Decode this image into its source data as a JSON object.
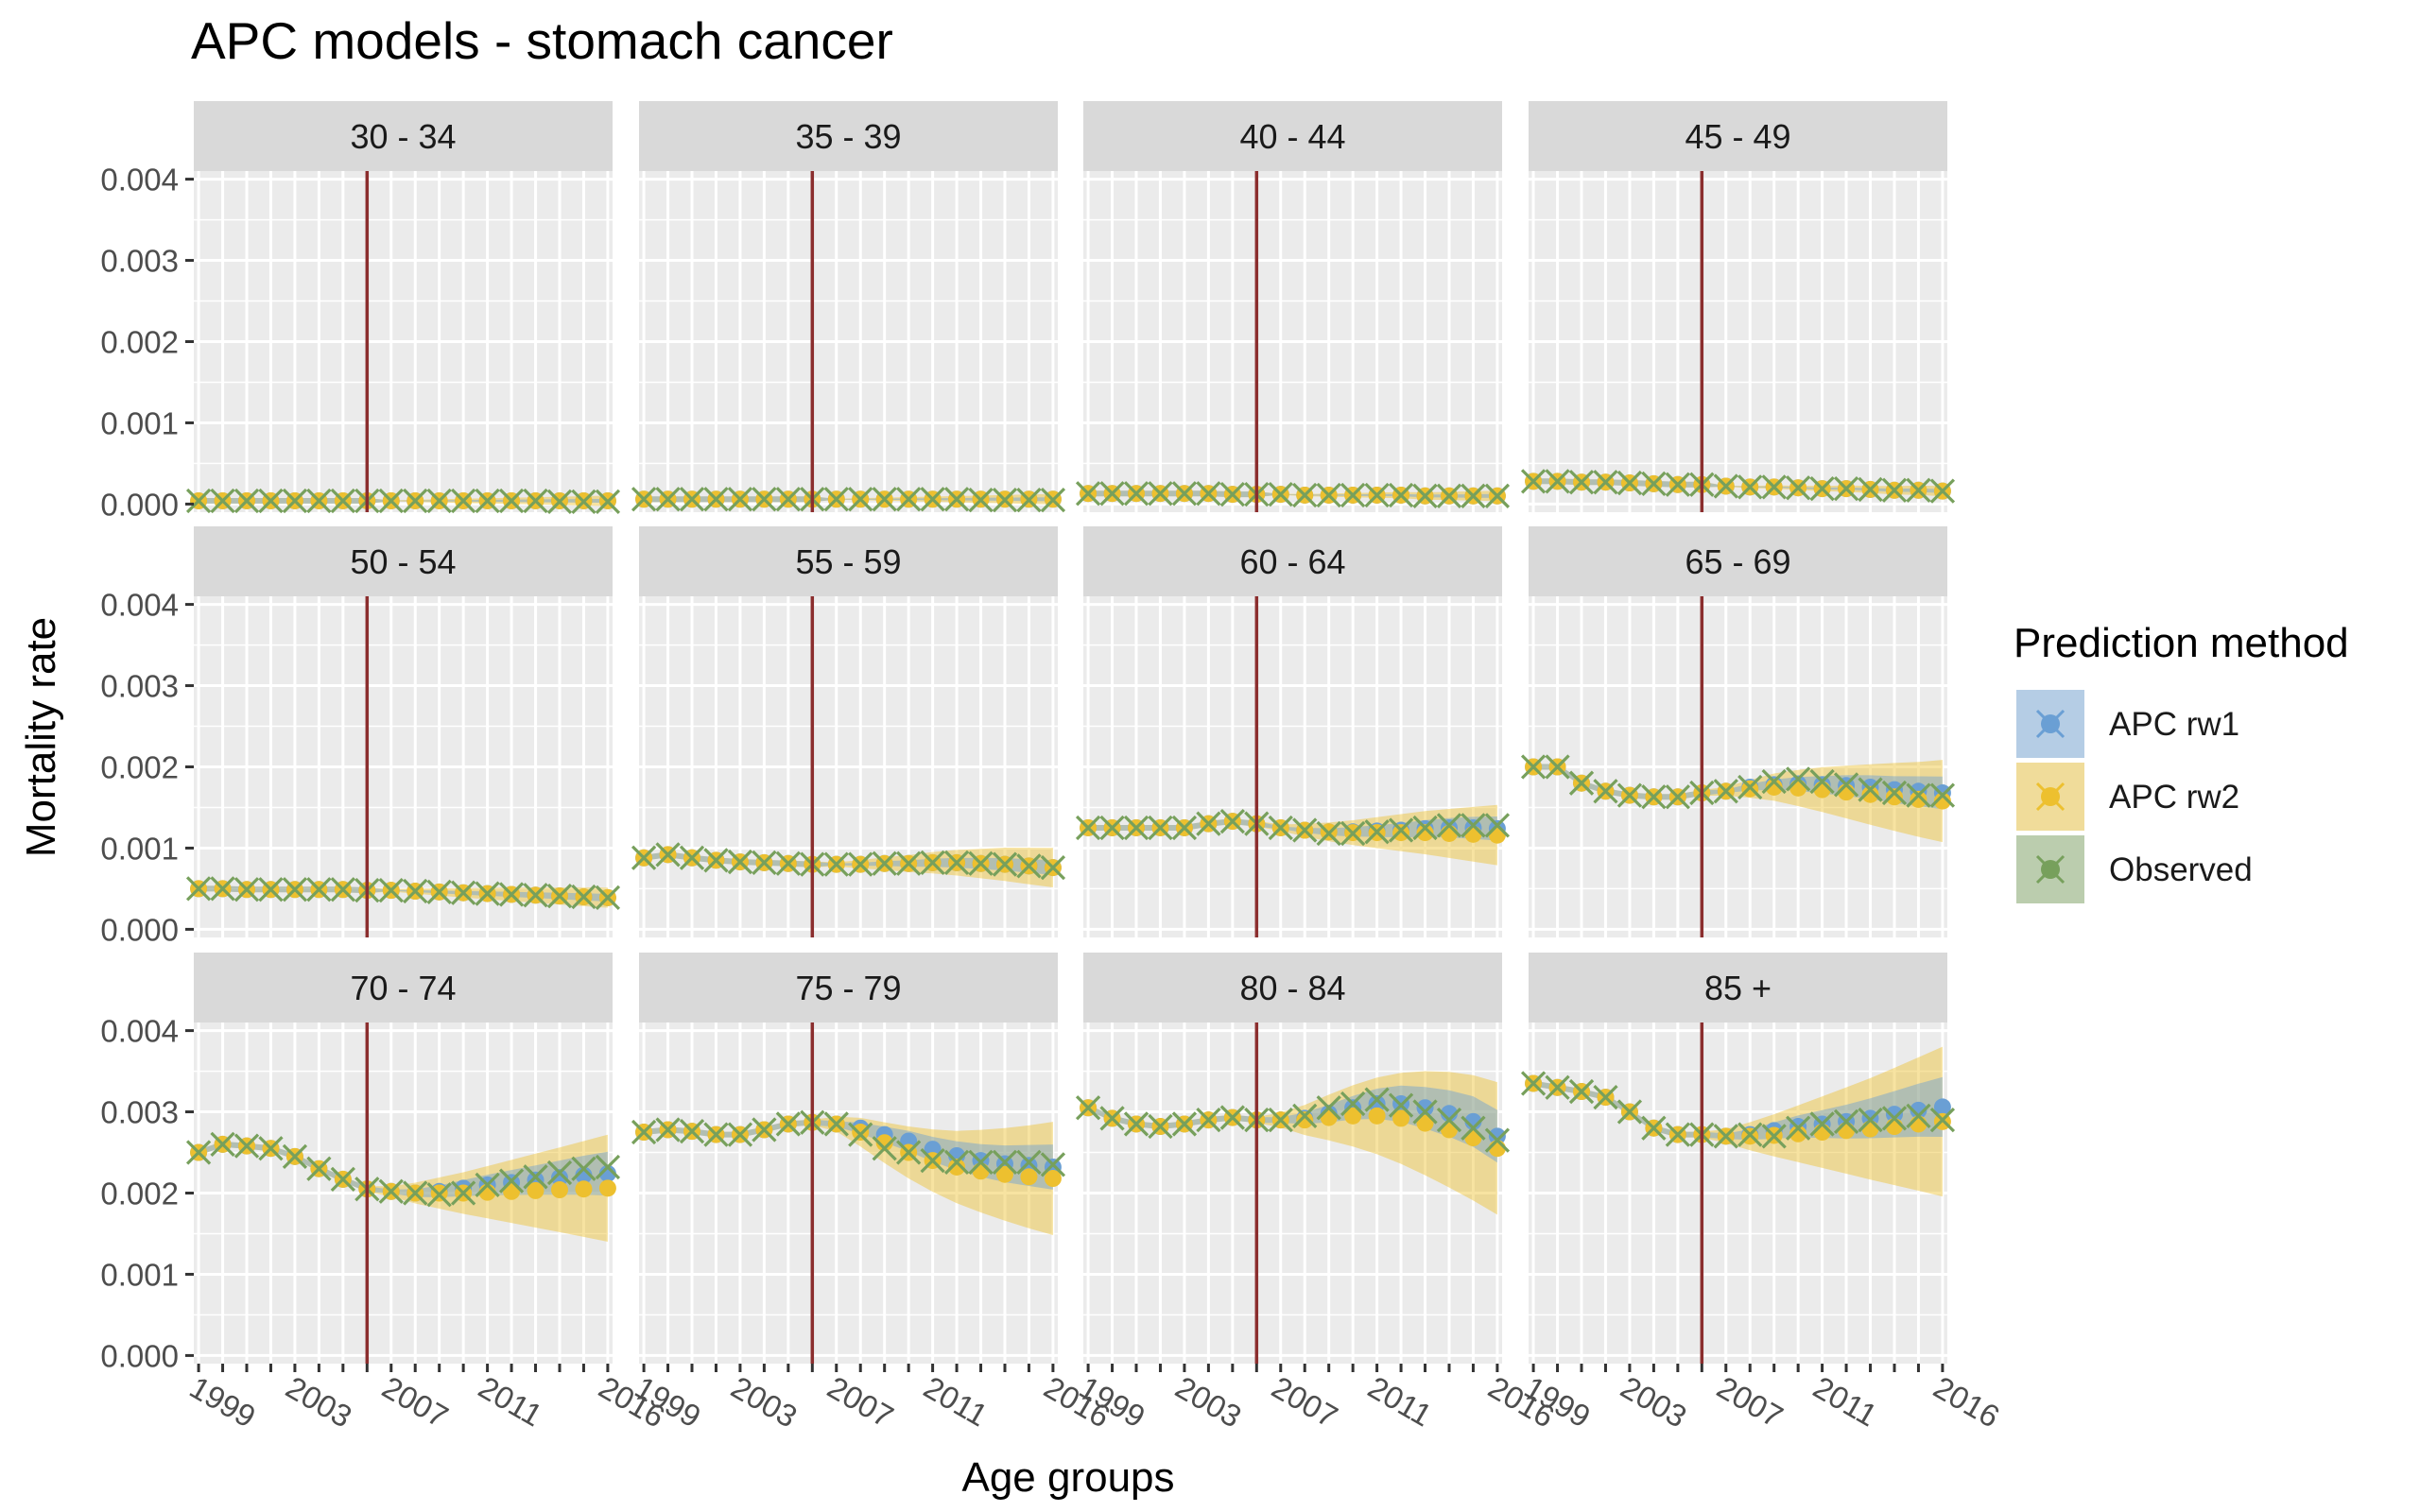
{
  "chart_data": {
    "type": "line",
    "title": "APC models - stomach cancer",
    "xlabel": "Age groups",
    "ylabel": "Mortality rate",
    "x": [
      1999,
      2000,
      2001,
      2002,
      2003,
      2004,
      2005,
      2006,
      2007,
      2008,
      2009,
      2010,
      2011,
      2012,
      2013,
      2014,
      2015,
      2016
    ],
    "x_ticks": [
      1999,
      2003,
      2007,
      2011,
      2016
    ],
    "xlim": [
      1998.8,
      2016.2
    ],
    "ylim": [
      -0.0001,
      0.0041
    ],
    "y_ticks": [
      "0.000",
      "0.001",
      "0.002",
      "0.003",
      "0.004"
    ],
    "reference_line_x": 2006,
    "grid": true,
    "legend": {
      "title": "Prediction method",
      "placement": "right",
      "entries": [
        {
          "name": "APC rw1",
          "color": "#5B9BD5"
        },
        {
          "name": "APC rw2",
          "color": "#F0C419"
        },
        {
          "name": "Observed",
          "color": "#6E9B50"
        }
      ]
    },
    "colors": {
      "rw1": "#6A9FD4",
      "rw2": "#EDC02F",
      "observed": "#77A05C",
      "vline": "#8B2E2E",
      "panel_bg": "#EBEBEB",
      "strip_bg": "#D9D9D9"
    },
    "panels": [
      {
        "label": "30 - 34",
        "observed": [
          4e-05,
          4e-05,
          4e-05,
          4e-05,
          4e-05,
          4e-05,
          4e-05,
          4e-05,
          4e-05,
          4e-05,
          4e-05,
          4e-05,
          4e-05,
          4e-05,
          4e-05,
          3e-05,
          3e-05,
          3e-05
        ],
        "rw1": [
          4e-05,
          4e-05,
          4e-05,
          4e-05,
          4e-05,
          4e-05,
          4e-05,
          4e-05,
          4e-05,
          4e-05,
          4e-05,
          4e-05,
          4e-05,
          4e-05,
          4e-05,
          4e-05,
          4e-05,
          4e-05
        ],
        "rw2": [
          4e-05,
          4e-05,
          4e-05,
          4e-05,
          4e-05,
          4e-05,
          4e-05,
          4e-05,
          4e-05,
          4e-05,
          4e-05,
          4e-05,
          4e-05,
          4e-05,
          4e-05,
          4e-05,
          4e-05,
          4e-05
        ]
      },
      {
        "label": "35 - 39",
        "observed": [
          6e-05,
          6e-05,
          6e-05,
          6e-05,
          6e-05,
          6e-05,
          6e-05,
          6e-05,
          6e-05,
          6e-05,
          6e-05,
          6e-05,
          6e-05,
          6e-05,
          5e-05,
          5e-05,
          5e-05,
          5e-05
        ],
        "rw1": [
          6e-05,
          6e-05,
          6e-05,
          6e-05,
          6e-05,
          6e-05,
          6e-05,
          6e-05,
          6e-05,
          6e-05,
          6e-05,
          6e-05,
          6e-05,
          6e-05,
          6e-05,
          6e-05,
          6e-05,
          6e-05
        ],
        "rw2": [
          6e-05,
          6e-05,
          6e-05,
          6e-05,
          6e-05,
          6e-05,
          6e-05,
          6e-05,
          6e-05,
          6e-05,
          6e-05,
          6e-05,
          6e-05,
          6e-05,
          6e-05,
          6e-05,
          6e-05,
          6e-05
        ]
      },
      {
        "label": "40 - 44",
        "observed": [
          0.00013,
          0.00013,
          0.00013,
          0.00013,
          0.00013,
          0.00013,
          0.00012,
          0.00012,
          0.00012,
          0.00011,
          0.00011,
          0.00011,
          0.00011,
          0.00011,
          0.0001,
          0.0001,
          0.0001,
          0.0001
        ],
        "rw1": [
          0.00013,
          0.00013,
          0.00013,
          0.00013,
          0.00013,
          0.00013,
          0.00012,
          0.00012,
          0.00012,
          0.00011,
          0.00011,
          0.00011,
          0.00011,
          0.00011,
          0.0001,
          0.0001,
          0.0001,
          0.0001
        ],
        "rw2": [
          0.00013,
          0.00013,
          0.00013,
          0.00013,
          0.00013,
          0.00013,
          0.00012,
          0.00012,
          0.00012,
          0.00011,
          0.00011,
          0.00011,
          0.00011,
          0.00011,
          0.0001,
          0.0001,
          0.0001,
          0.0001
        ]
      },
      {
        "label": "45 - 49",
        "observed": [
          0.00028,
          0.00028,
          0.00027,
          0.00027,
          0.00026,
          0.00025,
          0.00024,
          0.00024,
          0.00022,
          0.00021,
          0.00021,
          0.0002,
          0.00019,
          0.00019,
          0.00018,
          0.00017,
          0.00017,
          0.00016
        ],
        "rw1": [
          0.00028,
          0.00028,
          0.00027,
          0.00027,
          0.00026,
          0.00025,
          0.00024,
          0.00024,
          0.00022,
          0.00021,
          0.00021,
          0.0002,
          0.00019,
          0.00019,
          0.00018,
          0.00017,
          0.00017,
          0.00016
        ],
        "rw2": [
          0.00028,
          0.00028,
          0.00027,
          0.00027,
          0.00026,
          0.00025,
          0.00024,
          0.00024,
          0.00022,
          0.00021,
          0.00021,
          0.0002,
          0.00019,
          0.00019,
          0.00018,
          0.00017,
          0.00017,
          0.00016
        ]
      },
      {
        "label": "50 - 54",
        "observed": [
          0.0005,
          0.0005,
          0.00049,
          0.00049,
          0.00049,
          0.00049,
          0.00049,
          0.00048,
          0.00048,
          0.00047,
          0.00046,
          0.00045,
          0.00044,
          0.00043,
          0.00042,
          0.00041,
          0.0004,
          0.00039
        ],
        "rw1": [
          0.0005,
          0.0005,
          0.00049,
          0.00049,
          0.00049,
          0.00049,
          0.00049,
          0.00048,
          0.00048,
          0.00047,
          0.00046,
          0.00045,
          0.00044,
          0.00043,
          0.00042,
          0.00041,
          0.0004,
          0.00039
        ],
        "rw2": [
          0.0005,
          0.0005,
          0.00049,
          0.00049,
          0.00049,
          0.00049,
          0.00049,
          0.00048,
          0.00048,
          0.00047,
          0.00046,
          0.00045,
          0.00044,
          0.00043,
          0.00042,
          0.00041,
          0.0004,
          0.00039
        ]
      },
      {
        "label": "55 - 59",
        "observed": [
          0.00088,
          0.00092,
          0.00088,
          0.00085,
          0.00083,
          0.00082,
          0.00081,
          0.0008,
          0.0008,
          0.0008,
          0.00081,
          0.00081,
          0.00082,
          0.00082,
          0.00081,
          0.0008,
          0.00078,
          0.00076
        ],
        "rw1": [
          0.00088,
          0.00092,
          0.00088,
          0.00085,
          0.00083,
          0.00082,
          0.00081,
          0.0008,
          0.0008,
          0.0008,
          0.00081,
          0.00081,
          0.00082,
          0.00082,
          0.00081,
          0.0008,
          0.00078,
          0.00076
        ],
        "rw2": [
          0.00088,
          0.00092,
          0.00088,
          0.00085,
          0.00083,
          0.00082,
          0.00081,
          0.0008,
          0.0008,
          0.0008,
          0.00081,
          0.00081,
          0.00082,
          0.00082,
          0.00081,
          0.0008,
          0.00078,
          0.00076
        ]
      },
      {
        "label": "60 - 64",
        "observed": [
          0.00125,
          0.00125,
          0.00125,
          0.00125,
          0.00125,
          0.0013,
          0.00133,
          0.0013,
          0.00125,
          0.00122,
          0.00118,
          0.00118,
          0.0012,
          0.00122,
          0.00125,
          0.00128,
          0.00128,
          0.00128
        ],
        "rw1": [
          0.00125,
          0.00125,
          0.00125,
          0.00125,
          0.00125,
          0.0013,
          0.00133,
          0.0013,
          0.00125,
          0.00122,
          0.0012,
          0.0012,
          0.00121,
          0.00122,
          0.00124,
          0.00125,
          0.00125,
          0.00124
        ],
        "rw2": [
          0.00125,
          0.00125,
          0.00125,
          0.00125,
          0.00125,
          0.0013,
          0.00133,
          0.0013,
          0.00125,
          0.00122,
          0.0012,
          0.00119,
          0.00119,
          0.00119,
          0.00119,
          0.00118,
          0.00117,
          0.00116
        ]
      },
      {
        "label": "65 - 69",
        "observed": [
          0.002,
          0.002,
          0.0018,
          0.0017,
          0.00165,
          0.00163,
          0.00163,
          0.00168,
          0.0017,
          0.00175,
          0.00182,
          0.00185,
          0.00182,
          0.00178,
          0.00172,
          0.00168,
          0.00165,
          0.00165
        ],
        "rw1": [
          0.002,
          0.002,
          0.0018,
          0.0017,
          0.00165,
          0.00163,
          0.00163,
          0.00168,
          0.0017,
          0.00175,
          0.00178,
          0.00179,
          0.00178,
          0.00177,
          0.00175,
          0.00172,
          0.0017,
          0.00168
        ],
        "rw2": [
          0.002,
          0.002,
          0.0018,
          0.0017,
          0.00165,
          0.00163,
          0.00163,
          0.00168,
          0.0017,
          0.00173,
          0.00175,
          0.00174,
          0.00172,
          0.00169,
          0.00166,
          0.00163,
          0.0016,
          0.00158
        ]
      },
      {
        "label": "70 - 74",
        "observed": [
          0.0025,
          0.0026,
          0.00258,
          0.00255,
          0.00245,
          0.0023,
          0.00217,
          0.00205,
          0.00202,
          0.002,
          0.00198,
          0.002,
          0.0021,
          0.00215,
          0.0022,
          0.00225,
          0.0023,
          0.00232
        ],
        "rw1": [
          0.0025,
          0.0026,
          0.00258,
          0.00255,
          0.00245,
          0.0023,
          0.00217,
          0.00205,
          0.00202,
          0.002,
          0.00202,
          0.00206,
          0.0021,
          0.00213,
          0.00216,
          0.00219,
          0.00222,
          0.00224
        ],
        "rw2": [
          0.0025,
          0.0026,
          0.00258,
          0.00255,
          0.00245,
          0.0023,
          0.00217,
          0.00205,
          0.00202,
          0.002,
          0.002,
          0.002,
          0.00201,
          0.00202,
          0.00203,
          0.00204,
          0.00205,
          0.00206
        ]
      },
      {
        "label": "75 - 79",
        "observed": [
          0.00275,
          0.00278,
          0.00276,
          0.00272,
          0.00272,
          0.00278,
          0.00285,
          0.00287,
          0.00285,
          0.00272,
          0.00255,
          0.0025,
          0.0024,
          0.00238,
          0.00238,
          0.00238,
          0.00238,
          0.00235
        ],
        "rw1": [
          0.00275,
          0.00278,
          0.00276,
          0.00272,
          0.00272,
          0.00278,
          0.00285,
          0.00287,
          0.00285,
          0.0028,
          0.00272,
          0.00264,
          0.00254,
          0.00246,
          0.0024,
          0.00236,
          0.00234,
          0.00232
        ],
        "rw2": [
          0.00275,
          0.00278,
          0.00276,
          0.00272,
          0.00272,
          0.00278,
          0.00285,
          0.00287,
          0.00285,
          0.00275,
          0.00262,
          0.0025,
          0.0024,
          0.00232,
          0.00227,
          0.00223,
          0.0022,
          0.00218
        ]
      },
      {
        "label": "80 - 84",
        "observed": [
          0.00305,
          0.00292,
          0.00285,
          0.00282,
          0.00285,
          0.0029,
          0.00293,
          0.0029,
          0.0029,
          0.00295,
          0.00305,
          0.0031,
          0.00315,
          0.00308,
          0.003,
          0.0029,
          0.0028,
          0.00265
        ],
        "rw1": [
          0.00305,
          0.00292,
          0.00285,
          0.00282,
          0.00285,
          0.0029,
          0.00293,
          0.0029,
          0.0029,
          0.00292,
          0.00298,
          0.00305,
          0.0031,
          0.0031,
          0.00305,
          0.00298,
          0.00288,
          0.0027
        ],
        "rw2": [
          0.00305,
          0.00292,
          0.00285,
          0.00282,
          0.00285,
          0.0029,
          0.00293,
          0.0029,
          0.0029,
          0.0029,
          0.00293,
          0.00295,
          0.00295,
          0.00292,
          0.00286,
          0.00278,
          0.00268,
          0.00255
        ]
      },
      {
        "label": "85 +",
        "observed": [
          0.00335,
          0.0033,
          0.00325,
          0.00318,
          0.003,
          0.0028,
          0.00272,
          0.00272,
          0.0027,
          0.00272,
          0.0027,
          0.0028,
          0.00285,
          0.00288,
          0.0029,
          0.00292,
          0.00295,
          0.0029
        ],
        "rw1": [
          0.00335,
          0.0033,
          0.00325,
          0.00318,
          0.003,
          0.0028,
          0.00272,
          0.00272,
          0.0027,
          0.00272,
          0.00277,
          0.00282,
          0.00285,
          0.00288,
          0.00292,
          0.00297,
          0.00302,
          0.00306
        ],
        "rw2": [
          0.00335,
          0.0033,
          0.00325,
          0.00318,
          0.003,
          0.0028,
          0.00272,
          0.00272,
          0.0027,
          0.0027,
          0.00271,
          0.00273,
          0.00275,
          0.00277,
          0.00279,
          0.00282,
          0.00285,
          0.00288
        ]
      }
    ]
  }
}
